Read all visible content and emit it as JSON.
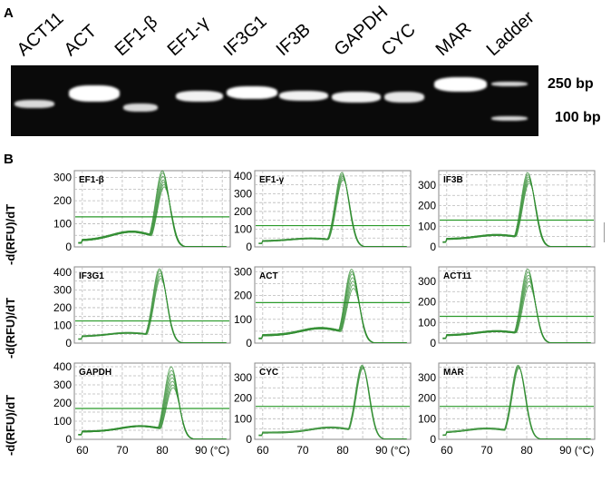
{
  "panel_a": {
    "letter": "A",
    "lanes": [
      "ACT11",
      "ACT",
      "EF1-β",
      "EF1-γ",
      "IF3G1",
      "IF3B",
      "GAPDH",
      "CYC",
      "MAR",
      "Ladder"
    ],
    "size_markers": [
      "250 bp",
      "100 bp"
    ]
  },
  "panel_b": {
    "letter": "B",
    "ylabel": "-d(RFU)/dT",
    "x_ticks": [
      "60",
      "70",
      "80",
      "90 (°C)"
    ],
    "colors": {
      "curve": "#2e8b2e",
      "threshold": "#2a9a2a",
      "grid": "#b9b9b9"
    }
  },
  "chart_data": [
    {
      "type": "line",
      "title": "EF1-β",
      "xlabel": "",
      "ylabel": "-d(RFU)/dT",
      "xlim": [
        58,
        97
      ],
      "ylim": [
        0,
        330
      ],
      "yticks": [
        0,
        100,
        200,
        300
      ],
      "threshold": 130,
      "series": [
        {
          "values_peak": [
            330,
            320,
            305,
            290,
            280,
            270,
            260
          ],
          "peak_x": 80.3,
          "baseline": 25,
          "hump": 38
        }
      ]
    },
    {
      "type": "line",
      "title": "EF1-γ",
      "xlabel": "",
      "ylabel": "",
      "xlim": [
        58,
        97
      ],
      "ylim": [
        0,
        430
      ],
      "yticks": [
        0,
        100,
        200,
        300,
        400
      ],
      "threshold": 120,
      "series": [
        {
          "values_peak": [
            420,
            410,
            400,
            390,
            380
          ],
          "peak_x": 80.0,
          "baseline": 30,
          "hump": 15
        }
      ]
    },
    {
      "type": "line",
      "title": "IF3B",
      "xlabel": "",
      "ylabel": "",
      "xlim": [
        58,
        97
      ],
      "ylim": [
        0,
        370
      ],
      "yticks": [
        0,
        100,
        200,
        300
      ],
      "threshold": 130,
      "series": [
        {
          "values_peak": [
            360,
            350,
            340,
            330,
            320,
            310
          ],
          "peak_x": 80.5,
          "baseline": 35,
          "hump": 20
        }
      ]
    },
    {
      "type": "line",
      "title": "IF3G1",
      "xlabel": "",
      "ylabel": "-d(RFU)/dT",
      "xlim": [
        58,
        97
      ],
      "ylim": [
        0,
        430
      ],
      "yticks": [
        0,
        100,
        200,
        300,
        400
      ],
      "threshold": 125,
      "series": [
        {
          "values_peak": [
            420,
            410,
            395,
            380,
            365
          ],
          "peak_x": 79.5,
          "baseline": 35,
          "hump": 20
        }
      ]
    },
    {
      "type": "line",
      "title": "ACT",
      "xlabel": "",
      "ylabel": "",
      "xlim": [
        58,
        97
      ],
      "ylim": [
        0,
        320
      ],
      "yticks": [
        0,
        100,
        200,
        300
      ],
      "threshold": 170,
      "series": [
        {
          "values_peak": [
            310,
            300,
            290,
            275,
            260,
            245,
            230
          ],
          "peak_x": 82.5,
          "baseline": 30,
          "hump": 30
        }
      ]
    },
    {
      "type": "line",
      "title": "ACT11",
      "xlabel": "",
      "ylabel": "",
      "xlim": [
        58,
        97
      ],
      "ylim": [
        0,
        370
      ],
      "yticks": [
        0,
        100,
        200,
        300
      ],
      "threshold": 130,
      "series": [
        {
          "values_peak": [
            360,
            345,
            330,
            315,
            300,
            280
          ],
          "peak_x": 80.5,
          "baseline": 35,
          "hump": 20
        }
      ]
    },
    {
      "type": "line",
      "title": "GAPDH",
      "xlabel": "",
      "ylabel": "-d(RFU)/dT",
      "xlim": [
        58,
        97
      ],
      "ylim": [
        0,
        420
      ],
      "yticks": [
        0,
        100,
        200,
        300,
        400
      ],
      "threshold": 170,
      "series": [
        {
          "values_peak": [
            400,
            380,
            360,
            340,
            320,
            300,
            285
          ],
          "peak_x": 82.5,
          "baseline": 40,
          "hump": 30
        }
      ]
    },
    {
      "type": "line",
      "title": "CYC",
      "xlabel": "",
      "ylabel": "",
      "xlim": [
        58,
        97
      ],
      "ylim": [
        0,
        370
      ],
      "yticks": [
        0,
        100,
        200,
        300
      ],
      "threshold": 160,
      "series": [
        {
          "values_peak": [
            360,
            355,
            350,
            345
          ],
          "peak_x": 85.0,
          "baseline": 30,
          "hump": 25
        }
      ]
    },
    {
      "type": "line",
      "title": "MAR",
      "xlabel": "",
      "ylabel": "",
      "xlim": [
        58,
        97
      ],
      "ylim": [
        0,
        370
      ],
      "yticks": [
        0,
        100,
        200,
        300
      ],
      "threshold": 160,
      "series": [
        {
          "values_peak": [
            360,
            355,
            350,
            345
          ],
          "peak_x": 78.0,
          "baseline": 30,
          "hump": 20
        }
      ]
    }
  ]
}
